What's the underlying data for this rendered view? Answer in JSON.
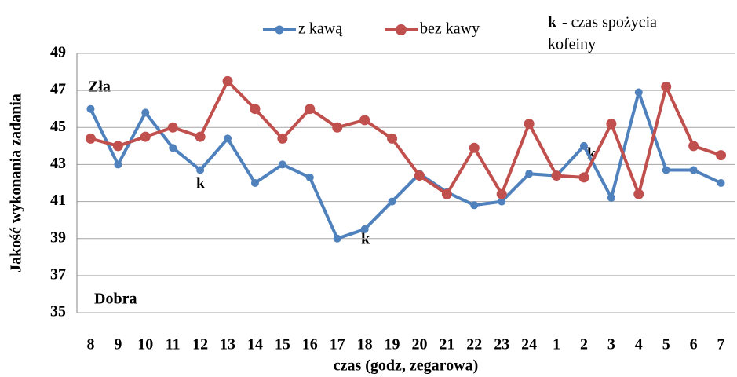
{
  "chart_data": {
    "type": "line",
    "x_label": "czas (godz, zegarowa)",
    "y_label": "Jakość wykonania zadania",
    "categories": [
      "8",
      "9",
      "10",
      "11",
      "12",
      "13",
      "14",
      "15",
      "16",
      "17",
      "18",
      "19",
      "20",
      "21",
      "22",
      "23",
      "24",
      "1",
      "2",
      "3",
      "4",
      "5",
      "6",
      "7"
    ],
    "series": [
      {
        "name": "z kawą",
        "color": "#4f81bd",
        "values": [
          46,
          43,
          45.8,
          43.9,
          42.7,
          44.4,
          42,
          43,
          42.3,
          39,
          39.5,
          41,
          42.5,
          41.5,
          40.8,
          41,
          42.5,
          42.4,
          44,
          41.2,
          46.9,
          42.7,
          42.7,
          42
        ]
      },
      {
        "name": "bez kawy",
        "color": "#c0504d",
        "values": [
          44.4,
          44,
          44.5,
          45,
          44.5,
          47.5,
          46,
          44.4,
          46,
          45,
          45.4,
          44.4,
          42.4,
          41.4,
          43.9,
          41.4,
          45.2,
          42.4,
          42.3,
          45.2,
          41.4,
          47.2,
          44,
          43.5
        ]
      }
    ],
    "ylim": [
      35,
      49
    ],
    "yticks": [
      35,
      37,
      39,
      41,
      43,
      45,
      47,
      49
    ],
    "grid": true,
    "annotations": [
      "Zła",
      "Dobra",
      "k",
      "k",
      "k"
    ],
    "note": [
      "k",
      "- czas spożycia",
      "kofeiny"
    ]
  }
}
